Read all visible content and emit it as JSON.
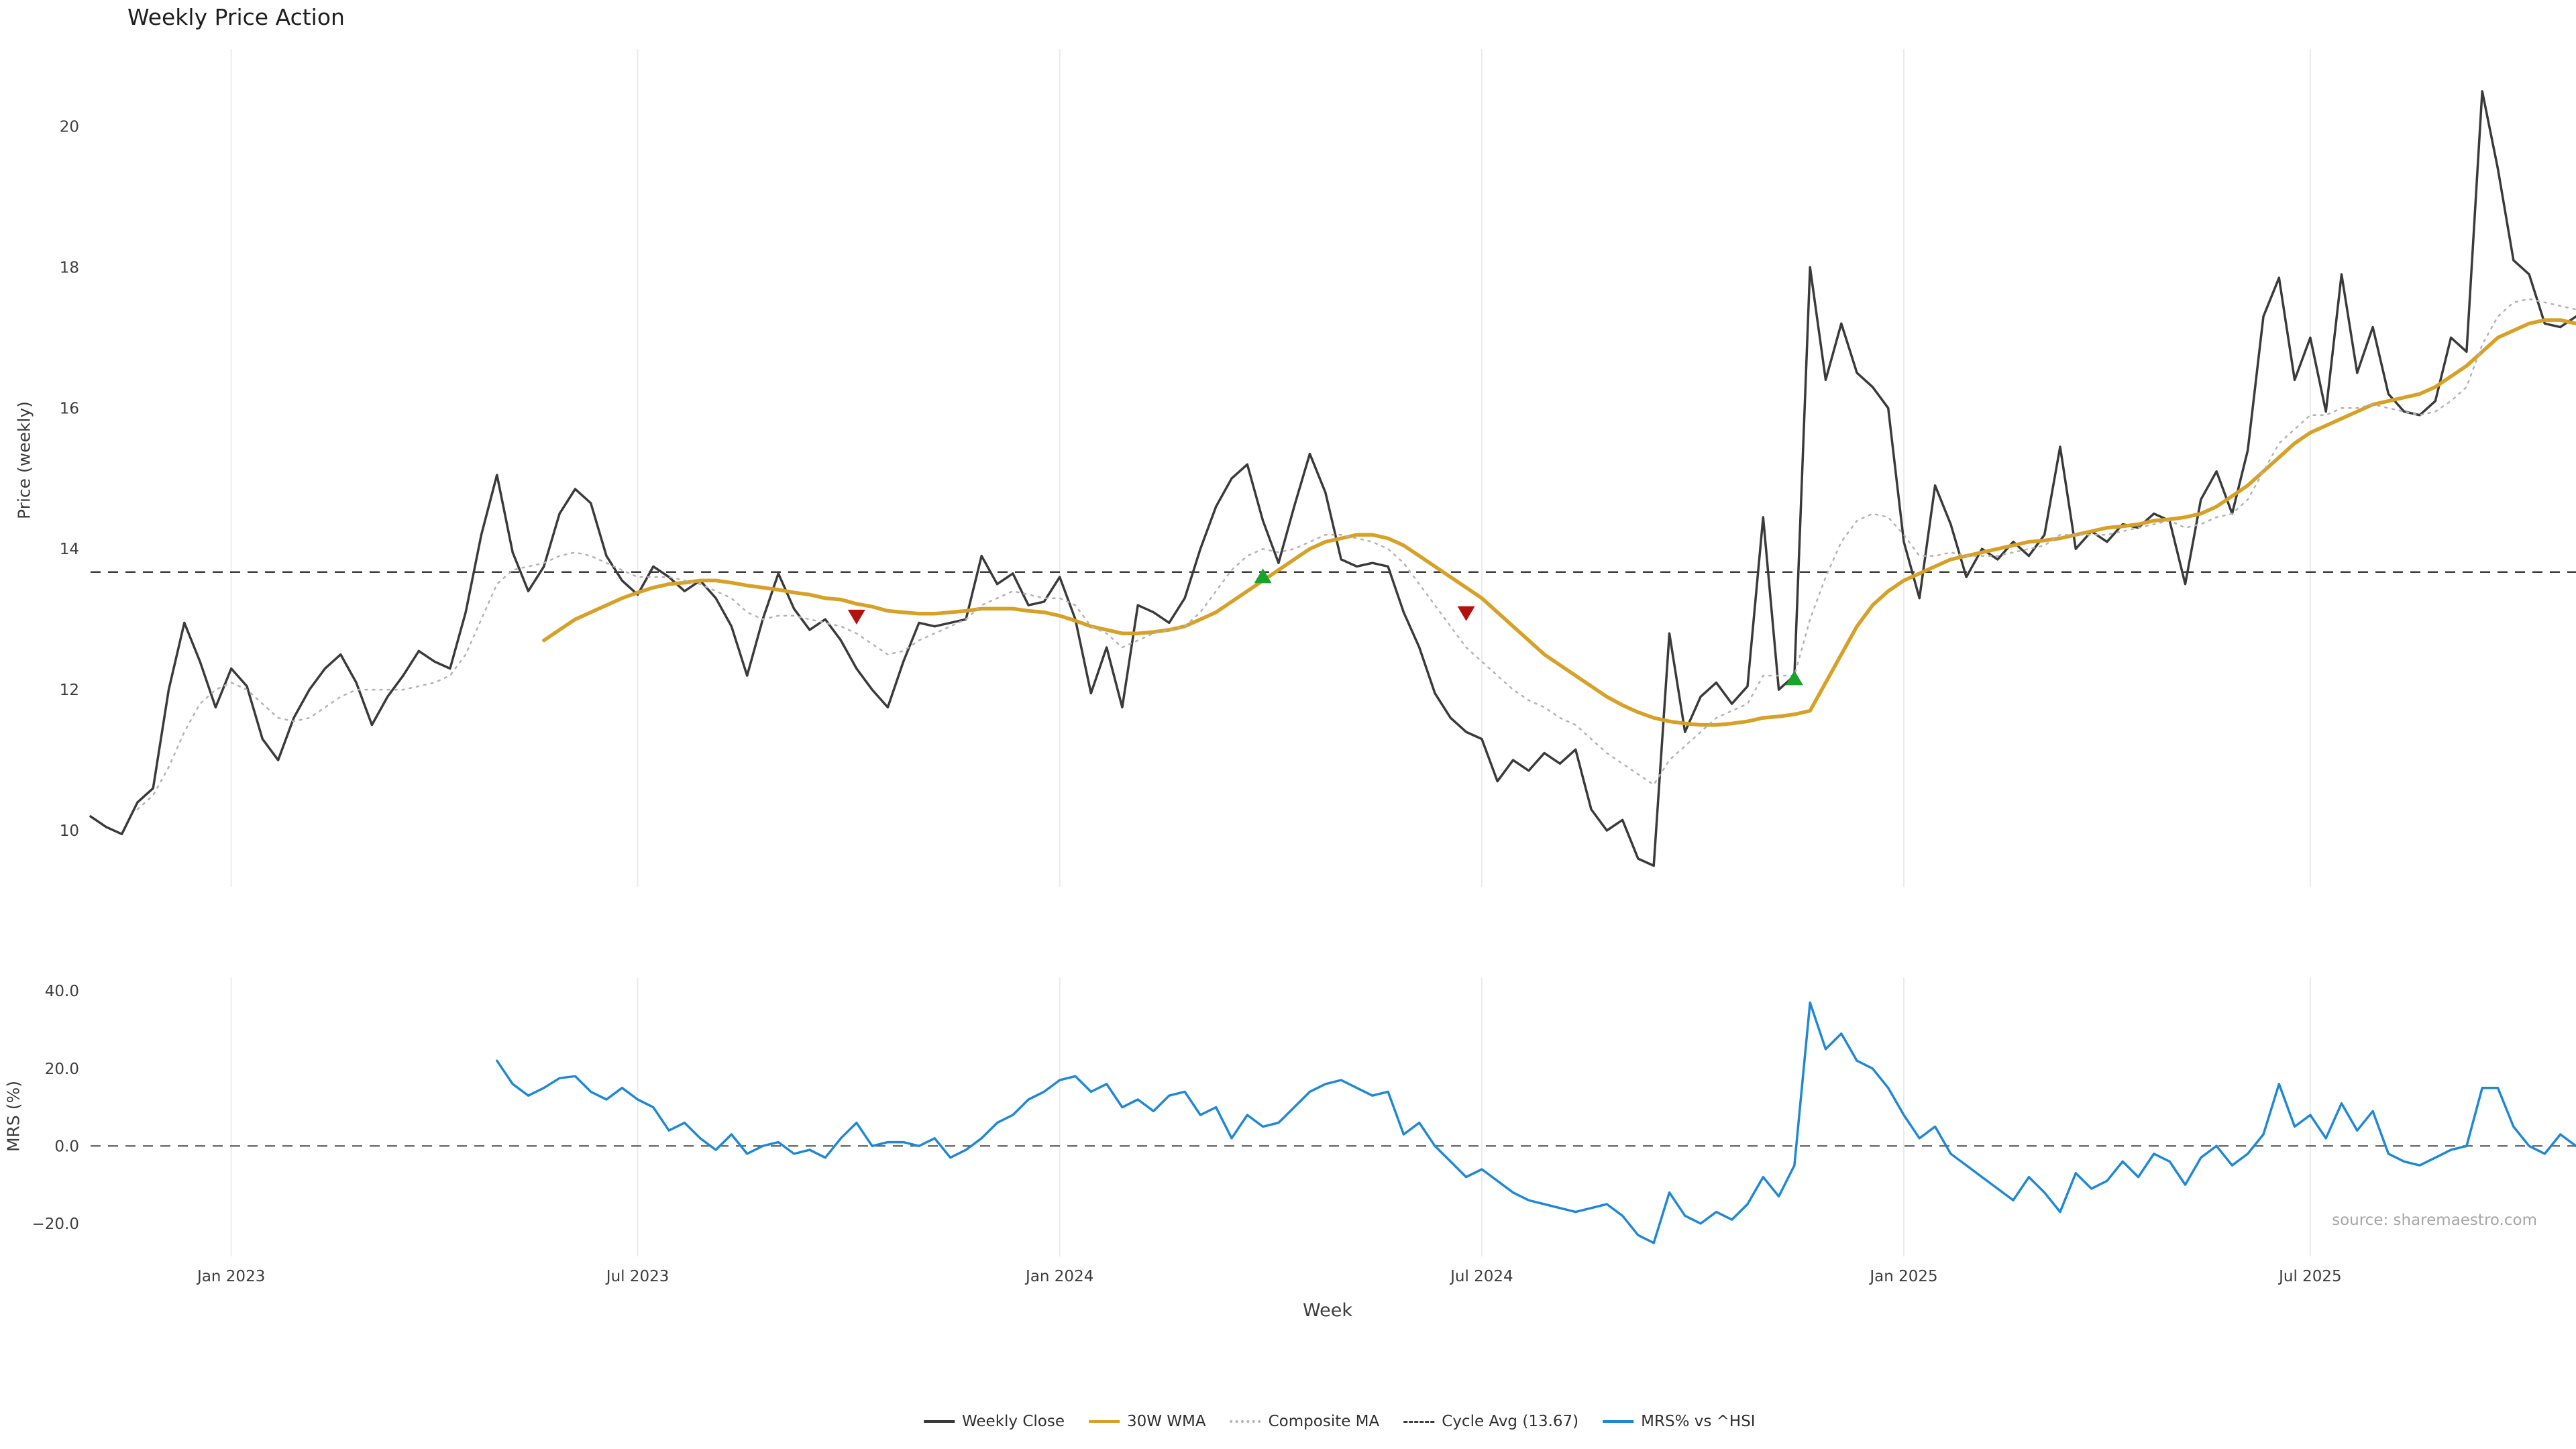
{
  "chart_data": [
    {
      "type": "line",
      "title": "Weekly Price Action",
      "xlabel": "Week",
      "ylabel": "Price (weekly)",
      "ylim": [
        9.2,
        21.1
      ],
      "grid": "vertical-only",
      "cycle_avg": 13.67,
      "y_ticks": [
        {
          "value": 10,
          "label": "10"
        },
        {
          "value": 12,
          "label": "12"
        },
        {
          "value": 14,
          "label": "14"
        },
        {
          "value": 16,
          "label": "16"
        },
        {
          "value": 18,
          "label": "18"
        },
        {
          "value": 20,
          "label": "20"
        }
      ],
      "x_ticks": [
        {
          "week": 9,
          "label": "Jan 2023"
        },
        {
          "week": 35,
          "label": "Jul 2023"
        },
        {
          "week": 62,
          "label": "Jan 2024"
        },
        {
          "week": 89,
          "label": "Jul 2024"
        },
        {
          "week": 116,
          "label": "Jan 2025"
        },
        {
          "week": 142,
          "label": "Jul 2025"
        }
      ],
      "series": [
        {
          "name": "Weekly Close",
          "color": "#3a3a3a",
          "style": "solid",
          "width": 3.5,
          "values": [
            10.2,
            10.05,
            9.95,
            10.4,
            10.6,
            12.0,
            12.95,
            12.4,
            11.75,
            12.3,
            12.05,
            11.3,
            11.0,
            11.6,
            12.0,
            12.3,
            12.5,
            12.1,
            11.5,
            11.9,
            12.2,
            12.55,
            12.4,
            12.3,
            13.1,
            14.2,
            15.05,
            13.95,
            13.4,
            13.75,
            14.5,
            14.85,
            14.65,
            13.9,
            13.55,
            13.35,
            13.75,
            13.6,
            13.4,
            13.55,
            13.3,
            12.9,
            12.2,
            13.0,
            13.65,
            13.15,
            12.85,
            13.0,
            12.7,
            12.3,
            12.0,
            11.75,
            12.4,
            12.95,
            12.9,
            12.95,
            13.0,
            13.9,
            13.5,
            13.65,
            13.2,
            13.25,
            13.6,
            13.0,
            11.95,
            12.6,
            11.75,
            13.2,
            13.1,
            12.95,
            13.3,
            14.0,
            14.6,
            15.0,
            15.2,
            14.4,
            13.8,
            14.6,
            15.35,
            14.8,
            13.85,
            13.75,
            13.8,
            13.75,
            13.1,
            12.6,
            11.95,
            11.6,
            11.4,
            11.3,
            10.7,
            11.0,
            10.85,
            11.1,
            10.95,
            11.15,
            10.3,
            10.0,
            10.15,
            9.6,
            9.5,
            12.8,
            11.4,
            11.9,
            12.1,
            11.8,
            12.05,
            14.45,
            12.0,
            12.2,
            18.0,
            16.4,
            17.2,
            16.5,
            16.3,
            16.0,
            14.1,
            13.3,
            14.9,
            14.35,
            13.6,
            14.0,
            13.85,
            14.1,
            13.9,
            14.2,
            15.45,
            14.0,
            14.25,
            14.1,
            14.35,
            14.3,
            14.5,
            14.4,
            13.5,
            14.7,
            15.1,
            14.5,
            15.4,
            17.3,
            17.85,
            16.4,
            17.0,
            15.95,
            17.9,
            16.5,
            17.15,
            16.2,
            15.95,
            15.9,
            16.1,
            17.0,
            16.8,
            20.5,
            19.4,
            18.1,
            17.9,
            17.2,
            17.15,
            17.3
          ]
        },
        {
          "name": "30W WMA",
          "color": "#d7a128",
          "style": "solid",
          "width": 5.5,
          "values": [
            null,
            null,
            null,
            null,
            null,
            null,
            null,
            null,
            null,
            null,
            null,
            null,
            null,
            null,
            null,
            null,
            null,
            null,
            null,
            null,
            null,
            null,
            null,
            null,
            null,
            null,
            null,
            null,
            null,
            12.7,
            12.85,
            13.0,
            13.1,
            13.2,
            13.3,
            13.38,
            13.45,
            13.5,
            13.52,
            13.55,
            13.55,
            13.52,
            13.48,
            13.45,
            13.42,
            13.38,
            13.35,
            13.3,
            13.28,
            13.22,
            13.18,
            13.12,
            13.1,
            13.08,
            13.08,
            13.1,
            13.12,
            13.15,
            13.15,
            13.15,
            13.12,
            13.1,
            13.05,
            12.98,
            12.9,
            12.85,
            12.8,
            12.8,
            12.82,
            12.85,
            12.9,
            13.0,
            13.1,
            13.25,
            13.4,
            13.55,
            13.7,
            13.85,
            14.0,
            14.1,
            14.15,
            14.2,
            14.2,
            14.15,
            14.05,
            13.9,
            13.75,
            13.6,
            13.45,
            13.3,
            13.1,
            12.9,
            12.7,
            12.5,
            12.35,
            12.2,
            12.05,
            11.9,
            11.78,
            11.68,
            11.6,
            11.55,
            11.52,
            11.5,
            11.5,
            11.52,
            11.55,
            11.6,
            11.62,
            11.65,
            11.7,
            12.1,
            12.5,
            12.9,
            13.2,
            13.4,
            13.55,
            13.65,
            13.75,
            13.85,
            13.9,
            13.95,
            14.0,
            14.05,
            14.1,
            14.12,
            14.15,
            14.2,
            14.25,
            14.3,
            14.32,
            14.35,
            14.4,
            14.42,
            14.45,
            14.5,
            14.6,
            14.75,
            14.9,
            15.1,
            15.3,
            15.5,
            15.65,
            15.75,
            15.85,
            15.95,
            16.05,
            16.1,
            16.15,
            16.2,
            16.3,
            16.45,
            16.6,
            16.8,
            17.0,
            17.1,
            17.2,
            17.25,
            17.25,
            17.2
          ]
        },
        {
          "name": "Composite MA",
          "color": "#b3b3b3",
          "style": "dotted",
          "width": 2.5,
          "values": [
            null,
            null,
            null,
            10.3,
            10.5,
            10.9,
            11.4,
            11.8,
            12.0,
            12.1,
            12.0,
            11.8,
            11.6,
            11.55,
            11.6,
            11.75,
            11.9,
            12.0,
            12.0,
            12.0,
            12.0,
            12.05,
            12.1,
            12.2,
            12.5,
            13.0,
            13.5,
            13.7,
            13.75,
            13.8,
            13.9,
            13.95,
            13.9,
            13.8,
            13.7,
            13.6,
            13.6,
            13.6,
            13.55,
            13.5,
            13.4,
            13.3,
            13.1,
            13.0,
            13.05,
            13.05,
            13.0,
            12.95,
            12.9,
            12.8,
            12.65,
            12.5,
            12.55,
            12.7,
            12.8,
            12.9,
            13.0,
            13.2,
            13.3,
            13.4,
            13.35,
            13.3,
            13.3,
            13.2,
            12.9,
            12.8,
            12.6,
            12.7,
            12.8,
            12.85,
            12.9,
            13.1,
            13.4,
            13.7,
            13.9,
            14.0,
            13.95,
            14.0,
            14.1,
            14.2,
            14.2,
            14.15,
            14.1,
            14.0,
            13.8,
            13.5,
            13.2,
            12.9,
            12.6,
            12.4,
            12.2,
            12.0,
            11.85,
            11.75,
            11.6,
            11.5,
            11.3,
            11.1,
            10.95,
            10.8,
            10.65,
            11.0,
            11.2,
            11.4,
            11.6,
            11.7,
            11.8,
            12.2,
            12.2,
            12.2,
            13.0,
            13.6,
            14.1,
            14.4,
            14.5,
            14.45,
            14.2,
            13.9,
            13.9,
            13.95,
            13.9,
            13.9,
            13.9,
            13.95,
            14.0,
            14.05,
            14.2,
            14.2,
            14.2,
            14.2,
            14.25,
            14.3,
            14.35,
            14.4,
            14.3,
            14.35,
            14.45,
            14.5,
            14.7,
            15.1,
            15.5,
            15.7,
            15.9,
            15.9,
            16.0,
            16.0,
            16.05,
            16.0,
            15.95,
            15.9,
            15.95,
            16.1,
            16.3,
            16.9,
            17.3,
            17.5,
            17.55,
            17.5,
            17.45,
            17.4
          ]
        }
      ],
      "markers": {
        "buy_color": "#1aa32c",
        "sell_color": "#b31010",
        "buy": [
          {
            "week": 75,
            "price": 13.6
          },
          {
            "week": 109,
            "price": 12.15
          }
        ],
        "sell": [
          {
            "week": 49,
            "price": 13.05
          },
          {
            "week": 88,
            "price": 13.1
          }
        ]
      }
    },
    {
      "type": "line",
      "ylabel": "MRS (%)",
      "ylim": [
        -28.5,
        43.5
      ],
      "grid": "vertical-only",
      "zero_line": 0,
      "source": "source: sharemaestro.com",
      "y_ticks": [
        {
          "value": -20,
          "label": "−20.0"
        },
        {
          "value": 0,
          "label": "0.0"
        },
        {
          "value": 20,
          "label": "20.0"
        },
        {
          "value": 40,
          "label": "40.0"
        }
      ],
      "series": [
        {
          "name": "MRS% vs ^HSI",
          "color": "#1f88d6",
          "style": "solid",
          "width": 3.5,
          "values": [
            null,
            null,
            null,
            null,
            null,
            null,
            null,
            null,
            null,
            null,
            null,
            null,
            null,
            null,
            null,
            null,
            null,
            null,
            null,
            null,
            null,
            null,
            null,
            null,
            null,
            null,
            22,
            16,
            13,
            15,
            17.5,
            18,
            14,
            12,
            15,
            12,
            10,
            4,
            6,
            2,
            -1,
            3,
            -2,
            0,
            1,
            -2,
            -1,
            -3,
            2,
            6,
            0,
            1,
            1,
            0,
            2,
            -3,
            -1,
            2,
            6,
            8,
            12,
            14,
            17,
            18,
            14,
            16,
            10,
            12,
            9,
            13,
            14,
            8,
            10,
            2,
            8,
            5,
            6,
            10,
            14,
            16,
            17,
            15,
            13,
            14,
            3,
            6,
            0,
            -4,
            -8,
            -6,
            -9,
            -12,
            -14,
            -15,
            -16,
            -17,
            -16,
            -15,
            -18,
            -23,
            -25,
            -12,
            -18,
            -20,
            -17,
            -19,
            -15,
            -8,
            -13,
            -5,
            37,
            25,
            29,
            22,
            20,
            15,
            8,
            2,
            5,
            -2,
            -5,
            -8,
            -11,
            -14,
            -8,
            -12,
            -17,
            -7,
            -11,
            -9,
            -4,
            -8,
            -2,
            -4,
            -10,
            -3,
            0,
            -5,
            -2,
            3,
            16,
            5,
            8,
            2,
            11,
            4,
            9,
            -2,
            -4,
            -5,
            -3,
            -1,
            0,
            15,
            15,
            5,
            0,
            -2,
            3,
            0
          ]
        }
      ]
    }
  ],
  "legend": {
    "position": "bottom-center",
    "items": [
      {
        "label": "Weekly Close",
        "color": "#3a3a3a",
        "style": "solid"
      },
      {
        "label": "30W WMA",
        "color": "#d7a128",
        "style": "solid"
      },
      {
        "label": "Composite MA",
        "color": "#b3b3b3",
        "style": "dotted"
      },
      {
        "label": "Cycle Avg (13.67)",
        "color": "#3d3d3d",
        "style": "dashed"
      },
      {
        "label": "MRS% vs ^HSI",
        "color": "#1f88d6",
        "style": "solid"
      }
    ]
  }
}
